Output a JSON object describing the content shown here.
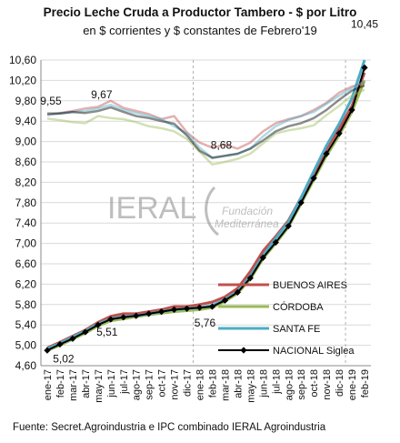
{
  "chart_data": {
    "type": "line",
    "title": "Precio Leche Cruda  a Productor  Tambero -  $ por Litro",
    "subtitle": "en $ corrientes y $ constantes de Febrero'19",
    "source": "Fuente: Secret.Agroindustria e IPC combinado  IERAL Agroindustria",
    "ylim": [
      4.6,
      10.6
    ],
    "yticks": [
      "4,60",
      "5,00",
      "5,40",
      "5,80",
      "6,20",
      "6,60",
      "7,00",
      "7,40",
      "7,80",
      "8,20",
      "8,60",
      "9,00",
      "9,40",
      "9,80",
      "10,20",
      "10,60"
    ],
    "grid": true,
    "categories": [
      "ene-17",
      "feb-17",
      "mar-17",
      "abr-17",
      "may-17",
      "jun-17",
      "jul-17",
      "ago-17",
      "sep-17",
      "oct-17",
      "nov-17",
      "dic-17",
      "ene-18",
      "feb-18",
      "mar-18",
      "abr-18",
      "may-18",
      "jun-18",
      "jul-18",
      "ago-18",
      "sep-18",
      "oct-18",
      "nov-18",
      "dic-18",
      "ene-19",
      "feb-19"
    ],
    "legend_position": "bottom-right",
    "series": [
      {
        "name": "BUENOS AIRES",
        "color": "#c0504d",
        "values": [
          4.95,
          5.06,
          5.18,
          5.3,
          5.45,
          5.57,
          5.62,
          5.62,
          5.66,
          5.7,
          5.76,
          5.76,
          5.8,
          5.85,
          5.95,
          6.12,
          6.45,
          6.85,
          7.14,
          7.45,
          7.9,
          8.35,
          8.85,
          9.25,
          9.7,
          10.35
        ]
      },
      {
        "name": "CÓRDOBA",
        "color": "#9bbb59",
        "values": [
          4.9,
          5.0,
          5.12,
          5.24,
          5.38,
          5.48,
          5.52,
          5.56,
          5.6,
          5.63,
          5.66,
          5.68,
          5.7,
          5.74,
          5.86,
          6.02,
          6.3,
          6.7,
          7.0,
          7.32,
          7.78,
          8.25,
          8.72,
          9.12,
          9.58,
          10.2
        ]
      },
      {
        "name": "SANTA FE",
        "color": "#4bacc6",
        "values": [
          4.93,
          5.04,
          5.16,
          5.28,
          5.42,
          5.52,
          5.56,
          5.58,
          5.62,
          5.66,
          5.7,
          5.72,
          5.74,
          5.78,
          5.9,
          6.06,
          6.36,
          6.76,
          7.1,
          7.42,
          7.9,
          8.42,
          8.92,
          9.35,
          9.85,
          10.6
        ]
      },
      {
        "name": "NACIONAL Siglea",
        "color": "#000000",
        "values": [
          4.9,
          5.02,
          5.13,
          5.26,
          5.4,
          5.51,
          5.55,
          5.58,
          5.62,
          5.66,
          5.7,
          5.72,
          5.74,
          5.76,
          5.88,
          6.04,
          6.32,
          6.72,
          7.02,
          7.34,
          7.8,
          8.28,
          8.76,
          9.16,
          9.62,
          10.45
        ]
      },
      {
        "name": "",
        "color": "#c0504d",
        "style": "faded",
        "values": [
          9.52,
          9.56,
          9.6,
          9.65,
          9.68,
          9.8,
          9.66,
          9.6,
          9.54,
          9.44,
          9.5,
          9.18,
          8.98,
          8.88,
          8.94,
          8.86,
          8.98,
          9.2,
          9.36,
          9.44,
          9.5,
          9.62,
          9.76,
          9.96,
          10.08,
          10.15
        ]
      },
      {
        "name": "",
        "color": "#9bbb59",
        "style": "faded",
        "values": [
          9.45,
          9.42,
          9.38,
          9.36,
          9.5,
          9.46,
          9.44,
          9.38,
          9.3,
          9.26,
          9.2,
          9.05,
          8.8,
          8.55,
          8.6,
          8.66,
          8.76,
          8.96,
          9.16,
          9.22,
          9.26,
          9.32,
          9.52,
          9.7,
          9.9,
          10.02
        ]
      },
      {
        "name": "",
        "color": "#4bacc6",
        "style": "faded",
        "values": [
          9.52,
          9.55,
          9.58,
          9.6,
          9.65,
          9.72,
          9.62,
          9.56,
          9.5,
          9.44,
          9.3,
          9.16,
          8.88,
          8.68,
          8.72,
          8.76,
          8.86,
          9.1,
          9.3,
          9.42,
          9.5,
          9.58,
          9.74,
          9.9,
          10.05,
          10.18
        ]
      },
      {
        "name": "",
        "color": "#000000",
        "style": "faded",
        "values": [
          9.55,
          9.55,
          9.58,
          9.56,
          9.6,
          9.67,
          9.58,
          9.5,
          9.46,
          9.4,
          9.35,
          9.12,
          8.82,
          8.68,
          8.72,
          8.76,
          8.86,
          9.02,
          9.2,
          9.3,
          9.36,
          9.46,
          9.62,
          9.82,
          10.0,
          10.1
        ]
      }
    ],
    "annotations": [
      {
        "text": "9,55",
        "x": "ene-17",
        "y": 9.55
      },
      {
        "text": "9,67",
        "x": "may-17",
        "y": 9.67
      },
      {
        "text": "8,68",
        "x": "feb-18",
        "y": 8.68
      },
      {
        "text": "10,45",
        "x": "feb-19",
        "y": 10.45
      },
      {
        "text": "5,02",
        "x": "feb-17",
        "y": 5.02
      },
      {
        "text": "5,51",
        "x": "jun-17",
        "y": 5.51
      },
      {
        "text": "5,76",
        "x": "feb-18",
        "y": 5.76
      }
    ],
    "watermark": {
      "left": "IERAL",
      "right_line1": "Fundación",
      "right_line2": "Mediterránea"
    }
  }
}
